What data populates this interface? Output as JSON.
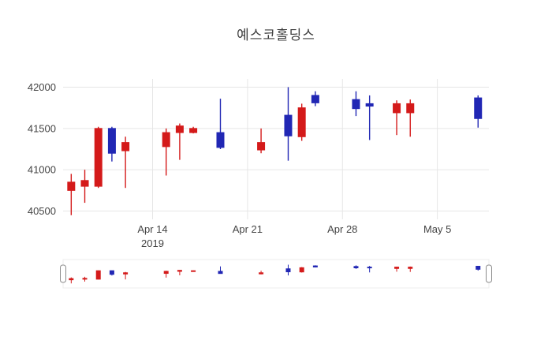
{
  "chart_data": {
    "type": "candlestick",
    "title": "예스코홀딩스",
    "xlabel": "",
    "ylabel": "",
    "legend": "none",
    "grid": "on",
    "up_color": "#d41a1a",
    "down_color": "#2127b4",
    "grid_color": "#e6e6e6",
    "axis_text_color": "#444444",
    "y_ticks": [
      40500,
      41000,
      41500,
      42000
    ],
    "y_range": [
      40400,
      42100
    ],
    "x_range": [
      -0.6,
      30.8
    ],
    "x_tick_labels": [
      {
        "pos": 6,
        "label": "Apr 14",
        "sub": "2019"
      },
      {
        "pos": 13,
        "label": "Apr 21",
        "sub": ""
      },
      {
        "pos": 20,
        "label": "Apr 28",
        "sub": ""
      },
      {
        "pos": 27,
        "label": "May 5",
        "sub": ""
      }
    ],
    "has_rangeslider": true,
    "candles": [
      {
        "date": "2019-04-08",
        "x": 0,
        "open": 40750,
        "high": 40950,
        "low": 40450,
        "close": 40850
      },
      {
        "date": "2019-04-09",
        "x": 1,
        "open": 40800,
        "high": 41000,
        "low": 40600,
        "close": 40870
      },
      {
        "date": "2019-04-10",
        "x": 2,
        "open": 40800,
        "high": 41520,
        "low": 40780,
        "close": 41500
      },
      {
        "date": "2019-04-11",
        "x": 3,
        "open": 41500,
        "high": 41520,
        "low": 41100,
        "close": 41200
      },
      {
        "date": "2019-04-12",
        "x": 4,
        "open": 41230,
        "high": 41400,
        "low": 40780,
        "close": 41330
      },
      {
        "date": "2019-04-15",
        "x": 7,
        "open": 41280,
        "high": 41500,
        "low": 40930,
        "close": 41450
      },
      {
        "date": "2019-04-16",
        "x": 8,
        "open": 41450,
        "high": 41560,
        "low": 41120,
        "close": 41530
      },
      {
        "date": "2019-04-17",
        "x": 9,
        "open": 41450,
        "high": 41520,
        "low": 41440,
        "close": 41500
      },
      {
        "date": "2019-04-19",
        "x": 11,
        "open": 41450,
        "high": 41860,
        "low": 41250,
        "close": 41270
      },
      {
        "date": "2019-04-22",
        "x": 14,
        "open": 41240,
        "high": 41500,
        "low": 41200,
        "close": 41330
      },
      {
        "date": "2019-04-24",
        "x": 16,
        "open": 41660,
        "high": 42000,
        "low": 41110,
        "close": 41410
      },
      {
        "date": "2019-04-25",
        "x": 17,
        "open": 41400,
        "high": 41800,
        "low": 41350,
        "close": 41750
      },
      {
        "date": "2019-04-26",
        "x": 18,
        "open": 41900,
        "high": 41950,
        "low": 41770,
        "close": 41810
      },
      {
        "date": "2019-04-29",
        "x": 21,
        "open": 41850,
        "high": 41950,
        "low": 41650,
        "close": 41740
      },
      {
        "date": "2019-04-30",
        "x": 22,
        "open": 41800,
        "high": 41900,
        "low": 41360,
        "close": 41770
      },
      {
        "date": "2019-05-02",
        "x": 24,
        "open": 41690,
        "high": 41840,
        "low": 41420,
        "close": 41800
      },
      {
        "date": "2019-05-03",
        "x": 25,
        "open": 41690,
        "high": 41850,
        "low": 41400,
        "close": 41800
      },
      {
        "date": "2019-05-08",
        "x": 30,
        "open": 41870,
        "high": 41900,
        "low": 41510,
        "close": 41620
      }
    ]
  }
}
